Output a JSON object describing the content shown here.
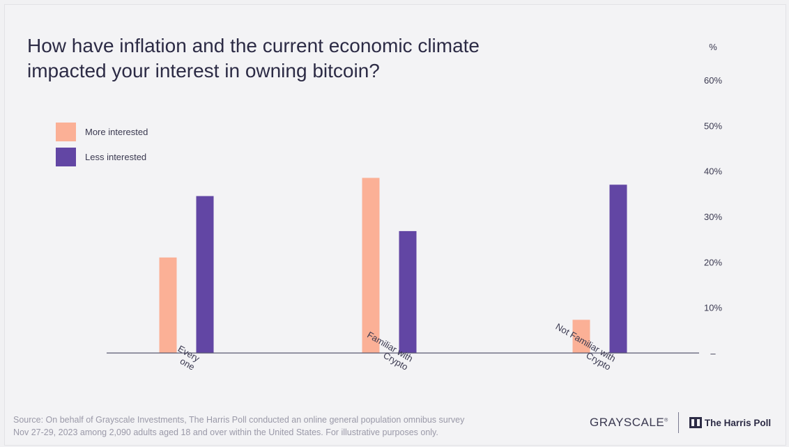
{
  "chart_data": {
    "type": "bar",
    "title": "How have inflation and the current economic climate impacted your interest in owning bitcoin?",
    "ylabel": "%",
    "ylim": [
      0,
      60
    ],
    "yticks": [
      {
        "value": 0,
        "label": "–"
      },
      {
        "value": 10,
        "label": "10%"
      },
      {
        "value": 20,
        "label": "20%"
      },
      {
        "value": 30,
        "label": "30%"
      },
      {
        "value": 40,
        "label": "40%"
      },
      {
        "value": 50,
        "label": "50%"
      },
      {
        "value": 60,
        "label": "60%"
      }
    ],
    "categories": [
      [
        "Every",
        "one"
      ],
      [
        "Familiar with",
        "Crypto"
      ],
      [
        "Not Familiar with",
        "Crypto"
      ]
    ],
    "series": [
      {
        "name": "More interested",
        "color": "#fbb096",
        "values": [
          21,
          38.5,
          7.3
        ]
      },
      {
        "name": "Less interested",
        "color": "#6246a4",
        "values": [
          34.5,
          26.8,
          37
        ]
      }
    ],
    "legend_position": "top-left",
    "grid": false
  },
  "footer": {
    "source_line1": "Source: On behalf of Grayscale Investments, The Harris Poll conducted an online general population omnibus survey",
    "source_line2": "Nov 27-29, 2023 among 2,090 adults aged 18 and over within the United States. For illustrative purposes only."
  },
  "logos": {
    "grayscale": "GRAYSCALE",
    "grayscale_mark": "®",
    "harris": "The Harris Poll"
  }
}
